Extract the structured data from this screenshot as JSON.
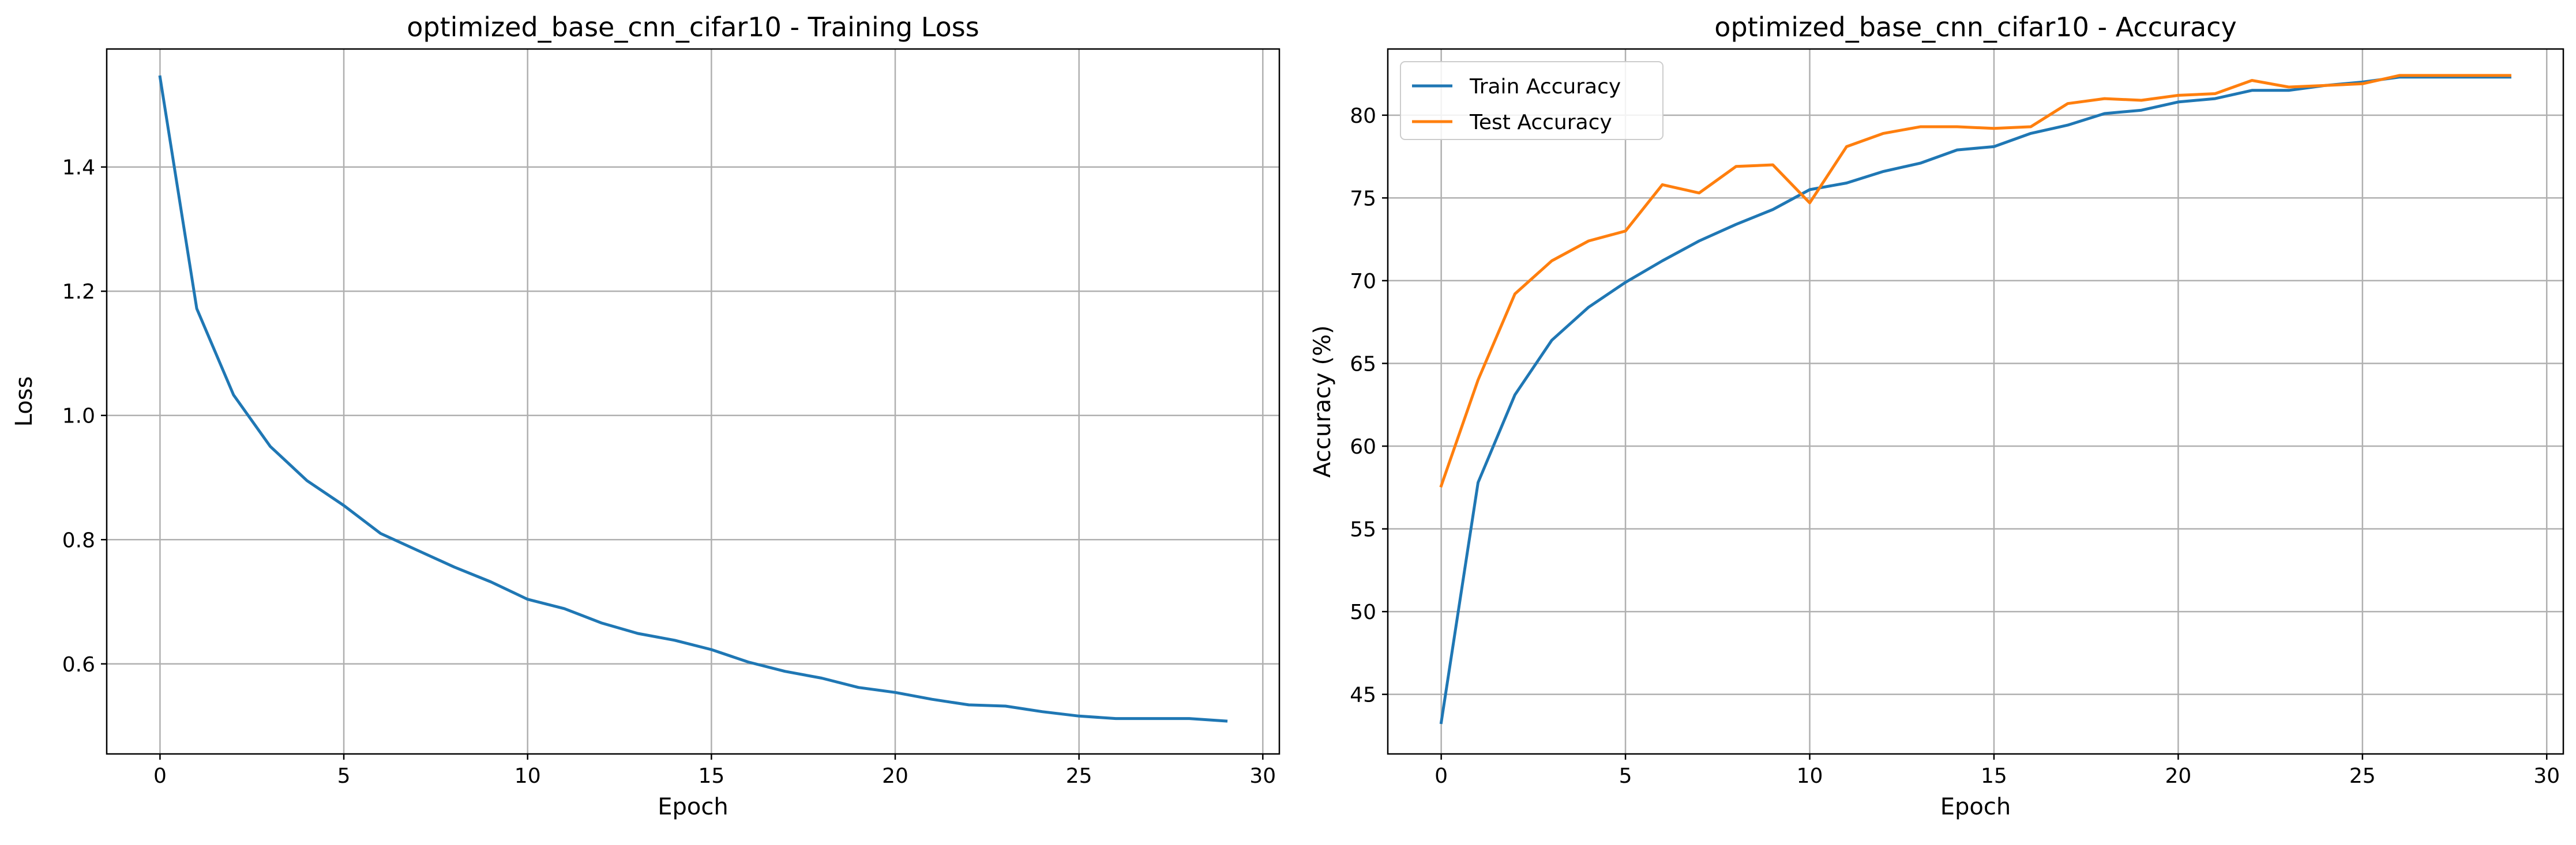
{
  "chart_data": [
    {
      "type": "line",
      "title": "optimized_base_cnn_cifar10 - Training Loss",
      "xlabel": "Epoch",
      "ylabel": "Loss",
      "xlim": [
        -1.45,
        30.45
      ],
      "ylim": [
        0.455,
        1.59
      ],
      "xticks": [
        0,
        5,
        10,
        15,
        20,
        25,
        30
      ],
      "yticks": [
        0.6,
        0.8,
        1.0,
        1.2,
        1.4
      ],
      "ytick_labels": [
        "0.6",
        "0.8",
        "1.0",
        "1.2",
        "1.4"
      ],
      "grid": true,
      "x": [
        0,
        1,
        2,
        3,
        4,
        5,
        6,
        7,
        8,
        9,
        10,
        11,
        12,
        13,
        14,
        15,
        16,
        17,
        18,
        19,
        20,
        21,
        22,
        23,
        24,
        25,
        26,
        27,
        28,
        29
      ],
      "series": [
        {
          "color": "#1f77b4",
          "values": [
            1.545,
            1.172,
            1.033,
            0.95,
            0.895,
            0.855,
            0.81,
            0.783,
            0.756,
            0.732,
            0.704,
            0.689,
            0.666,
            0.649,
            0.638,
            0.623,
            0.603,
            0.588,
            0.577,
            0.562,
            0.554,
            0.543,
            0.534,
            0.532,
            0.523,
            0.516,
            0.512,
            0.512,
            0.512,
            0.508
          ]
        }
      ]
    },
    {
      "type": "line",
      "title": "optimized_base_cnn_cifar10 - Accuracy",
      "xlabel": "Epoch",
      "ylabel": "Accuracy (%)",
      "xlim": [
        -1.45,
        30.45
      ],
      "ylim": [
        41.4,
        84.0
      ],
      "xticks": [
        0,
        5,
        10,
        15,
        20,
        25,
        30
      ],
      "yticks": [
        45,
        50,
        55,
        60,
        65,
        70,
        75,
        80
      ],
      "ytick_labels": [
        "45",
        "50",
        "55",
        "60",
        "65",
        "70",
        "75",
        "80"
      ],
      "grid": true,
      "legend_position": "top-left",
      "x": [
        0,
        1,
        2,
        3,
        4,
        5,
        6,
        7,
        8,
        9,
        10,
        11,
        12,
        13,
        14,
        15,
        16,
        17,
        18,
        19,
        20,
        21,
        22,
        23,
        24,
        25,
        26,
        27,
        28,
        29
      ],
      "series": [
        {
          "name": "Train Accuracy",
          "color": "#1f77b4",
          "values": [
            43.3,
            57.8,
            63.1,
            66.4,
            68.4,
            69.9,
            71.2,
            72.4,
            73.4,
            74.3,
            75.5,
            75.9,
            76.6,
            77.1,
            77.9,
            78.1,
            78.9,
            79.4,
            80.1,
            80.3,
            80.8,
            81.0,
            81.5,
            81.5,
            81.8,
            82.0,
            82.3,
            82.3,
            82.3,
            82.3
          ]
        },
        {
          "name": "Test Accuracy",
          "color": "#ff7f0e",
          "values": [
            57.6,
            64.0,
            69.2,
            71.2,
            72.4,
            73.0,
            75.8,
            75.3,
            76.9,
            77.0,
            74.7,
            78.1,
            78.9,
            79.3,
            79.3,
            79.2,
            79.3,
            80.7,
            81.0,
            80.9,
            81.2,
            81.3,
            82.1,
            81.7,
            81.8,
            81.9,
            82.4,
            82.4,
            82.4,
            82.4
          ]
        }
      ]
    }
  ]
}
